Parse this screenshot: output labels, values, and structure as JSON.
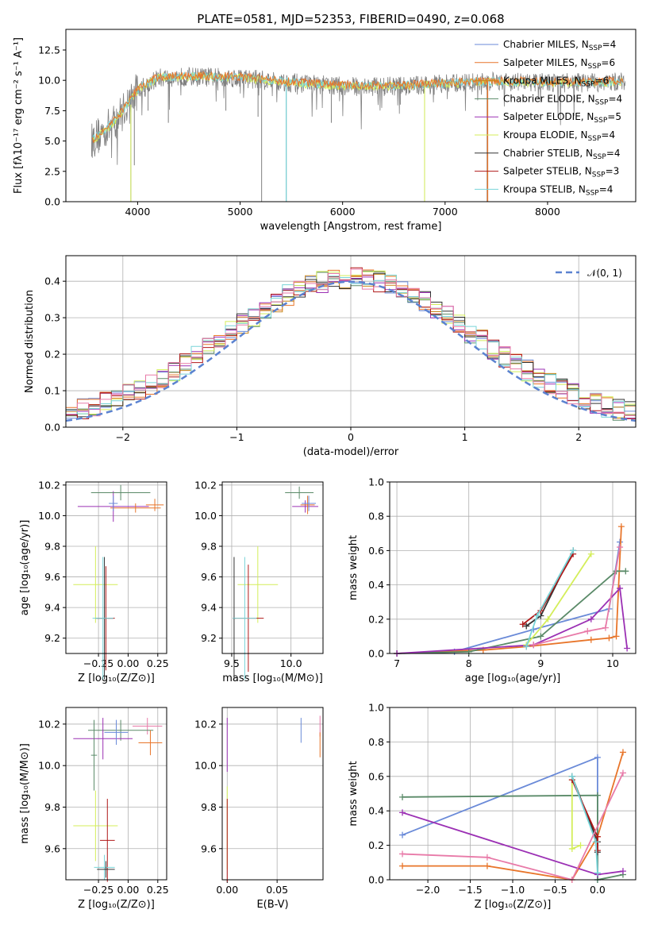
{
  "colors": {
    "Chabrier MILES": "#6a8ad8",
    "Salpeter MILES": "#e8752a",
    "Kroupa MILES": "#c8861a",
    "Chabrier ELODIE": "#5a8a68",
    "Salpeter ELODIE": "#9b30b4",
    "Kroupa ELODIE": "#d4ee5a",
    "Chabrier STELIB": "#333333",
    "Salpeter STELIB": "#b01818",
    "Kroupa STELIB": "#78d4d8",
    "pink": "#e87aa8",
    "gauss": "#5b82d0",
    "data": "#808080"
  },
  "chart_data": [
    {
      "type": "line",
      "title": "PLATE=0581, MJD=52353, FIBERID=0490, z=0.068",
      "xlabel": "wavelength [Angstrom, rest frame]",
      "ylabel": "Flux [fλ10⁻¹⁷ erg cm⁻² s⁻¹ A⁻¹]",
      "xlim": [
        3300,
        8860
      ],
      "ylim": [
        0,
        14.2
      ],
      "xticks": [
        4000,
        5000,
        6000,
        7000,
        8000
      ],
      "yticks": [
        0.0,
        2.5,
        5.0,
        7.5,
        10.0,
        12.5
      ],
      "grid": false,
      "legend_position": "right",
      "legend": [
        {
          "label": "Chabrier MILES, N",
          "sub": "SSP",
          "tail": "=4",
          "color": "Chabrier MILES"
        },
        {
          "label": "Salpeter MILES, N",
          "sub": "SSP",
          "tail": "=6",
          "color": "Salpeter MILES"
        },
        {
          "label": "Kroupa MILES, N",
          "sub": "SSP",
          "tail": "=6",
          "color": "Kroupa MILES"
        },
        {
          "label": "Chabrier ELODIE, N",
          "sub": "SSP",
          "tail": "=4",
          "color": "Chabrier ELODIE"
        },
        {
          "label": "Salpeter ELODIE, N",
          "sub": "SSP",
          "tail": "=5",
          "color": "Salpeter ELODIE"
        },
        {
          "label": "Kroupa ELODIE, N",
          "sub": "SSP",
          "tail": "=4",
          "color": "Kroupa ELODIE"
        },
        {
          "label": "Chabrier STELIB, N",
          "sub": "SSP",
          "tail": "=4",
          "color": "Chabrier STELIB"
        },
        {
          "label": "Salpeter STELIB, N",
          "sub": "SSP",
          "tail": "=3",
          "color": "Salpeter STELIB"
        },
        {
          "label": "Kroupa STELIB, N",
          "sub": "SSP",
          "tail": "=4",
          "color": "Kroupa STELIB"
        }
      ],
      "continuum": {
        "x": [
          3550,
          3700,
          3800,
          3900,
          4000,
          4200,
          4500,
          5000,
          5500,
          6000,
          6500,
          7000,
          7500,
          8000,
          8500,
          8750
        ],
        "y": [
          5.0,
          6.0,
          6.8,
          8.0,
          9.2,
          10.2,
          10.3,
          10.2,
          9.8,
          9.5,
          9.5,
          9.7,
          9.9,
          9.8,
          9.8,
          9.9
        ]
      },
      "absorption_lines": [
        {
          "x": 3934,
          "y": 0.0
        },
        {
          "x": 3968,
          "y": 3.0
        },
        {
          "x": 4102,
          "y": 7.5
        },
        {
          "x": 4300,
          "y": 6.5
        },
        {
          "x": 4861,
          "y": 7.5
        },
        {
          "x": 5175,
          "y": 7.0
        },
        {
          "x": 5210,
          "y": 0.0
        },
        {
          "x": 5450,
          "y": 0.0
        },
        {
          "x": 5890,
          "y": 6.5
        },
        {
          "x": 6563,
          "y": 8.0
        },
        {
          "x": 6800,
          "y": 0.0
        },
        {
          "x": 7410,
          "y": 0.0
        }
      ]
    },
    {
      "type": "bar",
      "title": "",
      "xlabel": "(data-model)/error",
      "ylabel": "Normed distribution",
      "xlim": [
        -2.5,
        2.5
      ],
      "ylim": [
        0,
        0.47
      ],
      "xticks": [
        -2,
        -1,
        0,
        1,
        2
      ],
      "yticks": [
        0.0,
        0.1,
        0.2,
        0.3,
        0.4
      ],
      "grid": true,
      "legend": [
        {
          "label": "𝒩(0, 1)",
          "style": "dashed",
          "color": "gauss"
        }
      ],
      "legend_position": "top-right",
      "bin_width": 0.1,
      "note_series": "nine histograms, one per model, approximately following N(0,1)"
    },
    {
      "type": "scatter",
      "title": "",
      "xlabel": "Z [log₁₀(Z/Z⊙)]",
      "ylabel": "age  [log₁₀(age/yr)]",
      "xlim": [
        -0.42,
        0.26
      ],
      "ylim": [
        9.1,
        10.22
      ],
      "xticks": [
        -0.2,
        0.0,
        0.2
      ],
      "xticklabels": [
        "−0.25",
        "0.00",
        "0.25"
      ],
      "yticks": [
        9.2,
        9.4,
        9.6,
        9.8,
        10.0,
        10.2
      ],
      "grid": true,
      "points": [
        {
          "x": -0.1,
          "y": 10.06,
          "ex": 0.24,
          "ey": 0.1,
          "color": "Salpeter ELODIE"
        },
        {
          "x": -0.05,
          "y": 10.15,
          "ex": 0.2,
          "ey": 0.05,
          "color": "Chabrier ELODIE"
        },
        {
          "x": 0.18,
          "y": 10.07,
          "ex": 0.06,
          "ey": 0.04,
          "color": "Salpeter MILES"
        },
        {
          "x": 0.05,
          "y": 10.05,
          "ex": 0.17,
          "ey": 0.03,
          "color": "Salpeter MILES"
        },
        {
          "x": -0.1,
          "y": 10.08,
          "ex": 0.03,
          "ey": 0.05,
          "color": "Chabrier MILES"
        },
        {
          "x": -0.22,
          "y": 9.55,
          "ex": 0.15,
          "ey": 0.25,
          "color": "Kroupa ELODIE"
        },
        {
          "x": -0.16,
          "y": 9.33,
          "ex": 0.06,
          "ey": 0.4,
          "color": "Chabrier STELIB"
        },
        {
          "x": -0.15,
          "y": 9.33,
          "ex": 0.06,
          "ey": 0.34,
          "color": "Salpeter STELIB"
        },
        {
          "x": -0.17,
          "y": 9.33,
          "ex": 0.07,
          "ey": 0.4,
          "color": "Kroupa STELIB"
        }
      ]
    },
    {
      "type": "scatter",
      "title": "",
      "xlabel": "mass [log₁₀(M/M⊙)]",
      "ylabel": "",
      "xlim": [
        9.42,
        10.27
      ],
      "ylim": [
        9.1,
        10.22
      ],
      "xticks": [
        9.5,
        10.0
      ],
      "xticklabels": [
        "9.5",
        "10.0"
      ],
      "yticks": [
        9.2,
        9.4,
        9.6,
        9.8,
        10.0,
        10.2
      ],
      "grid": true,
      "points": [
        {
          "x": 10.07,
          "y": 10.15,
          "ex": 0.12,
          "ey": 0.04,
          "color": "Chabrier ELODIE"
        },
        {
          "x": 10.12,
          "y": 10.06,
          "ex": 0.11,
          "ey": 0.04,
          "color": "Salpeter ELODIE"
        },
        {
          "x": 10.14,
          "y": 10.07,
          "ex": 0.06,
          "ey": 0.06,
          "color": "Salpeter MILES"
        },
        {
          "x": 10.15,
          "y": 10.08,
          "ex": 0.06,
          "ey": 0.05,
          "color": "Chabrier MILES"
        },
        {
          "x": 9.72,
          "y": 9.55,
          "ex": 0.17,
          "ey": 0.25,
          "color": "Kroupa ELODIE"
        },
        {
          "x": 9.64,
          "y": 9.33,
          "ex": 0.13,
          "ey": 0.35,
          "color": "Salpeter STELIB"
        },
        {
          "x": 9.52,
          "y": 9.33,
          "ex": 0.01,
          "ey": 0.4,
          "color": "Chabrier STELIB"
        },
        {
          "x": 9.61,
          "y": 9.33,
          "ex": 0.1,
          "ey": 0.4,
          "color": "Kroupa STELIB"
        }
      ]
    },
    {
      "type": "line",
      "title": "",
      "xlabel": "age  [log₁₀(age/yr)]",
      "ylabel": "mass weight",
      "xlim": [
        6.9,
        10.32
      ],
      "ylim": [
        0,
        1.0
      ],
      "xticks": [
        7,
        8,
        9,
        10
      ],
      "yticks": [
        0.0,
        0.2,
        0.4,
        0.6,
        0.8,
        1.0
      ],
      "grid": true,
      "series": [
        {
          "color": "Chabrier MILES",
          "x": [
            7.0,
            7.8,
            8.9,
            9.95,
            10.1
          ],
          "y": [
            0.0,
            0.01,
            0.14,
            0.26,
            0.65
          ]
        },
        {
          "color": "Salpeter MILES",
          "x": [
            7.0,
            8.2,
            8.8,
            9.7,
            9.95,
            10.05,
            10.12
          ],
          "y": [
            0.0,
            0.02,
            0.04,
            0.08,
            0.09,
            0.1,
            0.74
          ]
        },
        {
          "color": "Chabrier ELODIE",
          "x": [
            7.0,
            8.0,
            9.0,
            10.05,
            10.18
          ],
          "y": [
            0.0,
            0.01,
            0.1,
            0.48,
            0.48
          ]
        },
        {
          "color": "Salpeter ELODIE",
          "x": [
            7.0,
            8.9,
            9.7,
            10.1,
            10.2
          ],
          "y": [
            0.0,
            0.05,
            0.2,
            0.38,
            0.03
          ]
        },
        {
          "color": "Kroupa ELODIE",
          "x": [
            8.8,
            9.1,
            9.7
          ],
          "y": [
            0.05,
            0.2,
            0.58
          ]
        },
        {
          "color": "Chabrier STELIB",
          "x": [
            8.8,
            9.0,
            9.45
          ],
          "y": [
            0.16,
            0.22,
            0.6
          ]
        },
        {
          "color": "Salpeter STELIB",
          "x": [
            8.75,
            9.0,
            9.45
          ],
          "y": [
            0.17,
            0.25,
            0.58
          ]
        },
        {
          "color": "Kroupa STELIB",
          "x": [
            8.8,
            8.95,
            9.45
          ],
          "y": [
            0.04,
            0.22,
            0.6
          ]
        },
        {
          "color": "pink",
          "x": [
            8.9,
            9.65,
            9.9,
            10.1
          ],
          "y": [
            0.05,
            0.13,
            0.15,
            0.62
          ]
        }
      ]
    },
    {
      "type": "scatter",
      "title": "",
      "xlabel": "Z [log₁₀(Z/Z⊙)]",
      "ylabel": "mass [log₁₀(M/M⊙)]",
      "xlim": [
        -0.42,
        0.26
      ],
      "ylim": [
        9.45,
        10.28
      ],
      "xticks": [
        -0.2,
        0.0,
        0.2
      ],
      "xticklabels": [
        "−0.25",
        "0.00",
        "0.25"
      ],
      "yticks": [
        9.6,
        9.8,
        10.0,
        10.2
      ],
      "grid": true,
      "points": [
        {
          "x": 0.13,
          "y": 10.19,
          "ex": 0.1,
          "ey": 0.04,
          "color": "pink"
        },
        {
          "x": -0.05,
          "y": 10.17,
          "ex": 0.22,
          "ey": 0.05,
          "color": "Chabrier ELODIE"
        },
        {
          "x": -0.17,
          "y": 10.13,
          "ex": 0.2,
          "ey": 0.1,
          "color": "Salpeter ELODIE"
        },
        {
          "x": -0.08,
          "y": 10.16,
          "ex": 0.08,
          "ey": 0.06,
          "color": "Chabrier MILES"
        },
        {
          "x": 0.15,
          "y": 10.11,
          "ex": 0.08,
          "ey": 0.06,
          "color": "Salpeter MILES"
        },
        {
          "x": -0.23,
          "y": 10.05,
          "ex": 0.02,
          "ey": 0.17,
          "color": "Chabrier ELODIE"
        },
        {
          "x": -0.22,
          "y": 9.71,
          "ex": 0.15,
          "ey": 0.17,
          "color": "Kroupa ELODIE"
        },
        {
          "x": -0.14,
          "y": 9.64,
          "ex": 0.05,
          "ey": 0.2,
          "color": "Salpeter STELIB"
        },
        {
          "x": -0.16,
          "y": 9.51,
          "ex": 0.07,
          "ey": 0.06,
          "color": "Kroupa STELIB"
        },
        {
          "x": -0.15,
          "y": 9.5,
          "ex": 0.06,
          "ey": 0.04,
          "color": "Chabrier STELIB"
        }
      ]
    },
    {
      "type": "scatter",
      "title": "",
      "xlabel": "E(B-V)",
      "ylabel": "",
      "xlim": [
        -0.005,
        0.096
      ],
      "ylim": [
        9.45,
        10.28
      ],
      "xticks": [
        0.0,
        0.05
      ],
      "xticklabels": [
        "0.00",
        "0.05"
      ],
      "yticks": [
        9.6,
        9.8,
        10.0,
        10.2
      ],
      "grid": true,
      "points": [
        {
          "x": 0.0,
          "y": 10.1,
          "ex": 0.0,
          "ey": 0.13,
          "color": "Salpeter ELODIE"
        },
        {
          "x": 0.0,
          "y": 9.7,
          "ex": 0.0,
          "ey": 0.2,
          "color": "Kroupa ELODIE"
        },
        {
          "x": 0.0,
          "y": 9.64,
          "ex": 0.0,
          "ey": 0.2,
          "color": "Salpeter STELIB"
        },
        {
          "x": 0.074,
          "y": 10.17,
          "ex": 0.0,
          "ey": 0.06,
          "color": "Chabrier MILES"
        },
        {
          "x": 0.093,
          "y": 10.19,
          "ex": 0.0,
          "ey": 0.05,
          "color": "pink"
        },
        {
          "x": 0.093,
          "y": 10.1,
          "ex": 0.0,
          "ey": 0.06,
          "color": "Salpeter MILES"
        }
      ]
    },
    {
      "type": "line",
      "title": "",
      "xlabel": "Z [log₁₀(Z/Z⊙)]",
      "ylabel": "mass weight",
      "xlim": [
        -2.45,
        0.45
      ],
      "ylim": [
        0,
        1.0
      ],
      "xticks": [
        -2.0,
        -1.5,
        -1.0,
        -0.5,
        0.0
      ],
      "yticks": [
        0.0,
        0.2,
        0.4,
        0.6,
        0.8,
        1.0
      ],
      "grid": true,
      "series": [
        {
          "color": "Chabrier MILES",
          "x": [
            -2.3,
            0.0,
            0.0
          ],
          "y": [
            0.26,
            0.71,
            0.0
          ]
        },
        {
          "color": "Salpeter MILES",
          "x": [
            -2.3,
            -1.3,
            -0.3,
            0.0,
            0.3
          ],
          "y": [
            0.08,
            0.08,
            0.0,
            0.25,
            0.74
          ]
        },
        {
          "color": "Chabrier ELODIE",
          "x": [
            -2.3,
            0.0,
            0.0,
            0.3
          ],
          "y": [
            0.48,
            0.49,
            0.0,
            0.03
          ]
        },
        {
          "color": "Salpeter ELODIE",
          "x": [
            -2.3,
            0.0,
            0.3
          ],
          "y": [
            0.39,
            0.03,
            0.05
          ]
        },
        {
          "color": "Kroupa ELODIE",
          "x": [
            -0.3,
            -0.3,
            -0.2
          ],
          "y": [
            0.58,
            0.18,
            0.2
          ]
        },
        {
          "color": "Chabrier STELIB",
          "x": [
            -0.3,
            0.0,
            0.0
          ],
          "y": [
            0.6,
            0.22,
            0.16
          ]
        },
        {
          "color": "Salpeter STELIB",
          "x": [
            -0.3,
            0.0,
            0.0
          ],
          "y": [
            0.58,
            0.25,
            0.17
          ]
        },
        {
          "color": "Kroupa STELIB",
          "x": [
            -0.3,
            -0.02,
            0.0
          ],
          "y": [
            0.6,
            0.22,
            0.04
          ]
        },
        {
          "color": "pink",
          "x": [
            -2.3,
            -1.3,
            -0.3,
            0.3
          ],
          "y": [
            0.15,
            0.13,
            0.0,
            0.62
          ]
        }
      ]
    }
  ]
}
